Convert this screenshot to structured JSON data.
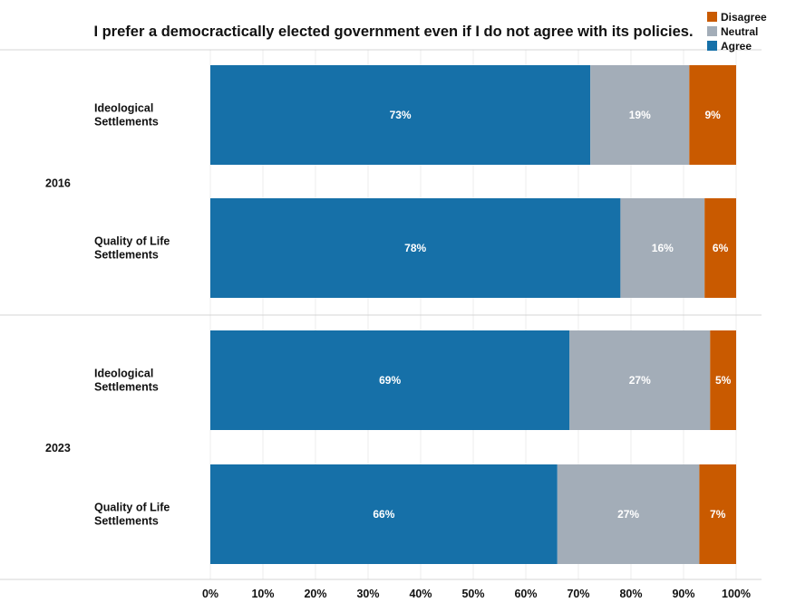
{
  "chart_data": {
    "type": "bar",
    "orientation": "horizontal",
    "stacked": true,
    "title": "I prefer a democractically elected government even if I do not agree with its policies.",
    "groups": [
      {
        "name": "2016",
        "categories": [
          [
            "Ideological",
            "Settlements"
          ],
          [
            "Quality of Life",
            "Settlements"
          ]
        ]
      },
      {
        "name": "2023",
        "categories": [
          [
            "Ideological",
            "Settlements"
          ],
          [
            "Quality of Life",
            "Settlements"
          ]
        ]
      }
    ],
    "series": [
      {
        "name": "Agree",
        "color": "#1670a8",
        "values": [
          73,
          78,
          69,
          66
        ],
        "labels": [
          "73%",
          "78%",
          "69%",
          "66%"
        ]
      },
      {
        "name": "Neutral",
        "color": "#a3adb8",
        "values": [
          19,
          16,
          27,
          27
        ],
        "labels": [
          "19%",
          "16%",
          "27%",
          "27%"
        ]
      },
      {
        "name": "Disagree",
        "color": "#c95a00",
        "values": [
          9,
          6,
          5,
          7
        ],
        "labels": [
          "9%",
          "6%",
          "5%",
          "7%"
        ]
      }
    ],
    "legend_order": [
      "Disagree",
      "Neutral",
      "Agree"
    ],
    "legend_position": "top-right",
    "xlim": [
      0,
      100
    ],
    "xticks": [
      "0%",
      "10%",
      "20%",
      "30%",
      "40%",
      "50%",
      "60%",
      "70%",
      "80%",
      "90%",
      "100%"
    ],
    "grid": true
  }
}
